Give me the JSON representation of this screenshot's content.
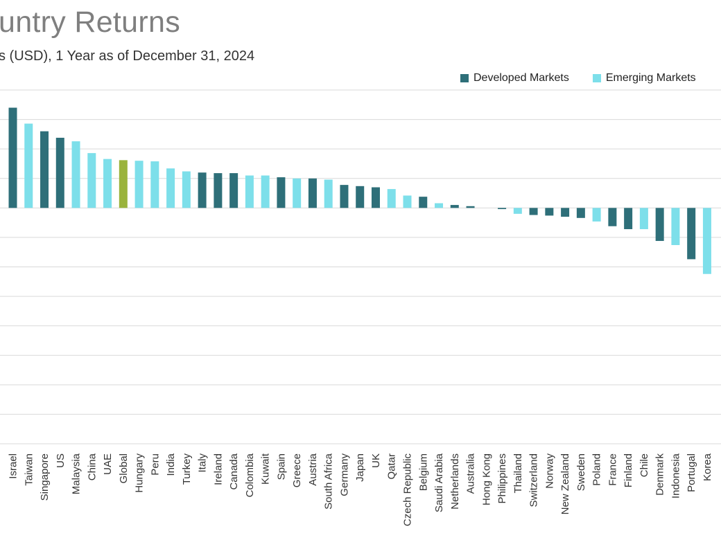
{
  "header": {
    "title": "untry Returns",
    "subtitle": "s (USD), 1 Year as of December 31, 2024"
  },
  "colors": {
    "developed": "#2e6f79",
    "emerging": "#7ddfea",
    "global": "#9ab33c",
    "grid": "#d9d9d9"
  },
  "chart_data": {
    "type": "bar",
    "title": "untry Returns",
    "subtitle": "s (USD), 1 Year as of December 31, 2024",
    "xlabel": "",
    "ylabel": "",
    "ylim": [
      -40,
      20
    ],
    "grid": true,
    "legend_position": "top-right",
    "series": [
      {
        "name": "Developed Markets",
        "color": "#2e6f79"
      },
      {
        "name": "Emerging Markets",
        "color": "#7ddfea"
      }
    ],
    "categories": [
      "Israel",
      "Taiwan",
      "Singapore",
      "US",
      "Malaysia",
      "China",
      "UAE",
      "Global",
      "Hungary",
      "Peru",
      "India",
      "Turkey",
      "Italy",
      "Ireland",
      "Canada",
      "Colombia",
      "Kuwait",
      "Spain",
      "Greece",
      "Austria",
      "South Africa",
      "Germany",
      "Japan",
      "UK",
      "Qatar",
      "Czech Republic",
      "Belgium",
      "Saudi Arabia",
      "Netherlands",
      "Australia",
      "Hong Kong",
      "Philippines",
      "Thailand",
      "Switzerland",
      "Norway",
      "New Zealand",
      "Sweden",
      "Poland",
      "France",
      "Finland",
      "Chile",
      "Denmark",
      "Indonesia",
      "Portugal",
      "Korea"
    ],
    "values": [
      17.0,
      14.3,
      13.0,
      11.9,
      11.3,
      9.3,
      8.3,
      8.1,
      8.0,
      7.9,
      6.7,
      6.2,
      6.0,
      5.9,
      5.9,
      5.5,
      5.5,
      5.2,
      5.0,
      5.0,
      4.8,
      3.9,
      3.7,
      3.5,
      3.2,
      2.1,
      1.9,
      0.8,
      0.5,
      0.3,
      0.0,
      -0.2,
      -1.0,
      -1.2,
      -1.3,
      -1.5,
      -1.7,
      -2.3,
      -3.1,
      -3.6,
      -3.6,
      -5.6,
      -6.3,
      -8.7,
      -11.2
    ],
    "groups": [
      "Developed Markets",
      "Emerging Markets",
      "Developed Markets",
      "Developed Markets",
      "Emerging Markets",
      "Emerging Markets",
      "Emerging Markets",
      "Global",
      "Emerging Markets",
      "Emerging Markets",
      "Emerging Markets",
      "Emerging Markets",
      "Developed Markets",
      "Developed Markets",
      "Developed Markets",
      "Emerging Markets",
      "Emerging Markets",
      "Developed Markets",
      "Emerging Markets",
      "Developed Markets",
      "Emerging Markets",
      "Developed Markets",
      "Developed Markets",
      "Developed Markets",
      "Emerging Markets",
      "Emerging Markets",
      "Developed Markets",
      "Emerging Markets",
      "Developed Markets",
      "Developed Markets",
      "Developed Markets",
      "Developed Markets",
      "Emerging Markets",
      "Developed Markets",
      "Developed Markets",
      "Developed Markets",
      "Developed Markets",
      "Emerging Markets",
      "Developed Markets",
      "Developed Markets",
      "Emerging Markets",
      "Developed Markets",
      "Emerging Markets",
      "Developed Markets",
      "Emerging Markets"
    ]
  }
}
